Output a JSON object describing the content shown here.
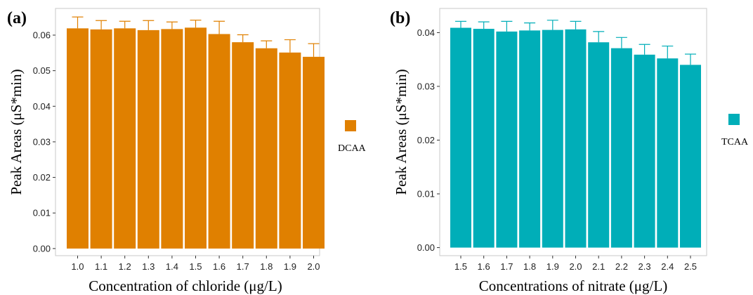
{
  "chart_data": [
    {
      "type": "bar",
      "panel_label": "(a)",
      "xlabel": "Concentration of chloride (μg/L)",
      "ylabel": "Peak Areas (μS*min)",
      "categories": [
        "1.0",
        "1.1",
        "1.2",
        "1.3",
        "1.4",
        "1.5",
        "1.6",
        "1.7",
        "1.8",
        "1.9",
        "2.0"
      ],
      "values": [
        0.0619,
        0.0616,
        0.0619,
        0.0614,
        0.0617,
        0.0621,
        0.0603,
        0.058,
        0.0563,
        0.0551,
        0.0539
      ],
      "errors": [
        0.0032,
        0.0025,
        0.002,
        0.0027,
        0.002,
        0.0021,
        0.0036,
        0.0021,
        0.0021,
        0.0036,
        0.0037
      ],
      "ylim": [
        -0.002,
        0.0675
      ],
      "yticks": [
        0.0,
        0.01,
        0.02,
        0.03,
        0.04,
        0.05,
        0.06
      ],
      "ytick_labels": [
        "0.00",
        "0.01",
        "0.02",
        "0.03",
        "0.04",
        "0.05",
        "0.06"
      ],
      "color": "#E08000",
      "legend": {
        "label": "DCAA",
        "position": "right"
      },
      "grid": false
    },
    {
      "type": "bar",
      "panel_label": "(b)",
      "xlabel": "Concentrations of nitrate (μg/L)",
      "ylabel": "Peak Areas (μS*min)",
      "categories": [
        "1.5",
        "1.6",
        "1.7",
        "1.8",
        "1.9",
        "2.0",
        "2.1",
        "2.2",
        "2.3",
        "2.4",
        "2.5"
      ],
      "values": [
        0.0409,
        0.0407,
        0.0402,
        0.0404,
        0.0405,
        0.0406,
        0.0382,
        0.0371,
        0.0359,
        0.0352,
        0.034
      ],
      "errors": [
        0.0012,
        0.0013,
        0.0019,
        0.0014,
        0.0018,
        0.0015,
        0.002,
        0.002,
        0.0019,
        0.0023,
        0.002
      ],
      "ylim": [
        -0.0015,
        0.0445
      ],
      "yticks": [
        0.0,
        0.01,
        0.02,
        0.03,
        0.04
      ],
      "ytick_labels": [
        "0.00",
        "0.01",
        "0.02",
        "0.03",
        "0.04"
      ],
      "color": "#00AEB8",
      "legend": {
        "label": "TCAA",
        "position": "right"
      },
      "grid": false
    }
  ]
}
